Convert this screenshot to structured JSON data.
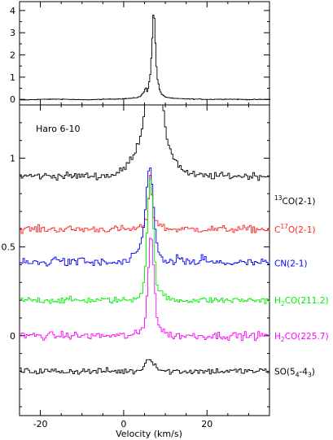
{
  "chart_data": [
    {
      "type": "line",
      "panel": "top",
      "xlim": [
        -25,
        35
      ],
      "ylim": [
        -0.25,
        4.4
      ],
      "y_ticks": [
        0,
        1,
        2,
        3,
        4
      ],
      "grid": false,
      "series": [
        {
          "color": "#000000",
          "points": [
            [
              -25,
              -0.03
            ],
            [
              -20,
              0.0
            ],
            [
              -15,
              0.01
            ],
            [
              -10,
              -0.02
            ],
            [
              -5,
              0.0
            ],
            [
              0,
              0.03
            ],
            [
              2,
              0.05
            ],
            [
              3,
              0.08
            ],
            [
              4,
              0.15
            ],
            [
              4.8,
              0.35
            ],
            [
              5.2,
              0.55
            ],
            [
              5.6,
              0.3
            ],
            [
              6.0,
              0.8
            ],
            [
              6.3,
              1.2
            ],
            [
              6.6,
              2.2
            ],
            [
              6.9,
              3.3
            ],
            [
              7.1,
              4.3
            ],
            [
              7.4,
              3.0
            ],
            [
              7.7,
              1.6
            ],
            [
              8.0,
              0.9
            ],
            [
              8.5,
              0.45
            ],
            [
              9,
              0.22
            ],
            [
              10,
              0.1
            ],
            [
              12,
              0.04
            ],
            [
              15,
              0.02
            ],
            [
              20,
              0.0
            ],
            [
              25,
              0.01
            ],
            [
              30,
              -0.01
            ],
            [
              35,
              0.0
            ]
          ]
        }
      ]
    },
    {
      "type": "line",
      "panel": "bottom",
      "title": "Haro 6-10",
      "xlabel": "Velocity (km/s)",
      "xlim": [
        -25,
        35
      ],
      "ylim": [
        -0.45,
        1.3
      ],
      "x_ticks": [
        -20,
        0,
        20
      ],
      "y_ticks": [
        0,
        0.5,
        1
      ],
      "grid": false,
      "series": [
        {
          "label": "13CO(2-1)",
          "label_main": "CO(2-1)",
          "label_sup": "13",
          "label_sup_pos": "prefix",
          "color": "#000000",
          "baseline": 0.9,
          "noise": 0.012,
          "peaks": [
            [
              7.3,
              0.55,
              1.3
            ],
            [
              7.0,
              0.3,
              3.5
            ]
          ]
        },
        {
          "label": "C17O(2-1)",
          "label_main_pre": "C",
          "label_sup": "17",
          "label_main_post": "O(2-1)",
          "label_sup_pos": "middle",
          "color": "#ff2020",
          "baseline": 0.6,
          "noise": 0.012,
          "peaks": [
            [
              6.4,
              0.25,
              0.35
            ],
            [
              6.8,
              0.06,
              1.5
            ]
          ]
        },
        {
          "label": "CN(2-1)",
          "label_main": "CN(2-1)",
          "color": "#0000ff",
          "baseline": 0.41,
          "noise": 0.014,
          "peaks": [
            [
              6.3,
              0.44,
              0.9
            ],
            [
              5.3,
              0.1,
              2.0
            ],
            [
              -16,
              0.04,
              0.6
            ],
            [
              -10,
              0.03,
              0.6
            ],
            [
              13,
              0.03,
              0.6
            ],
            [
              19,
              0.03,
              0.6
            ]
          ]
        },
        {
          "label": "H2CO(211.2)",
          "label_main_pre": "H",
          "label_sub": "2",
          "label_main_post": "CO(211.2)",
          "color": "#00ee00",
          "baseline": 0.2,
          "noise": 0.011,
          "peaks": [
            [
              6.4,
              0.6,
              0.7
            ],
            [
              6.6,
              0.08,
              2.0
            ]
          ]
        },
        {
          "label": "H2CO(225.7)",
          "label_main_pre": "H",
          "label_sub": "2",
          "label_main_post": "CO(225.7)",
          "color": "#ff00ff",
          "baseline": 0.0,
          "noise": 0.013,
          "peaks": [
            [
              6.6,
              0.5,
              0.65
            ],
            [
              6.8,
              0.08,
              1.8
            ]
          ]
        },
        {
          "label": "SO(5_4-4_3)",
          "label_main_pre": "SO(5",
          "label_sub": "4",
          "label_mid": "-4",
          "label_sub2": "3",
          "label_main_post": ")",
          "color": "#000000",
          "baseline": -0.2,
          "noise": 0.011,
          "peaks": [
            [
              6.3,
              0.07,
              1.2
            ]
          ]
        }
      ]
    }
  ]
}
